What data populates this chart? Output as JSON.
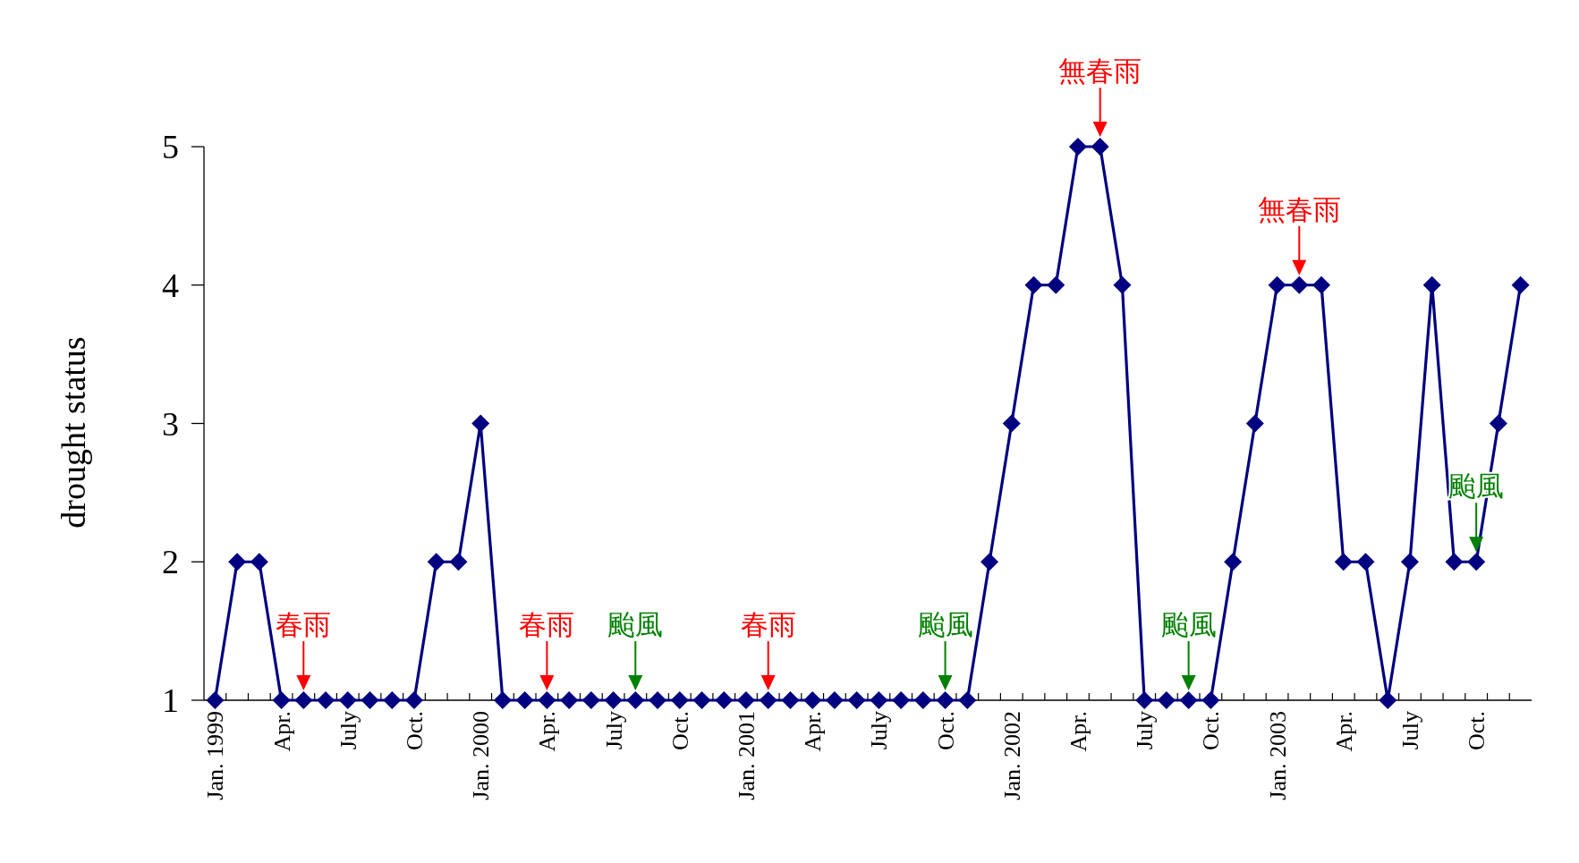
{
  "chart_data": {
    "type": "line",
    "ylabel": "drought status",
    "color": "#000080",
    "marker": "diamond",
    "line_style": "solid",
    "grid": false,
    "x": [
      "1999-01",
      "1999-02",
      "1999-03",
      "1999-04",
      "1999-05",
      "1999-06",
      "1999-07",
      "1999-08",
      "1999-09",
      "1999-10",
      "1999-11",
      "1999-12",
      "2000-01",
      "2000-02",
      "2000-03",
      "2000-04",
      "2000-05",
      "2000-06",
      "2000-07",
      "2000-08",
      "2000-09",
      "2000-10",
      "2000-11",
      "2000-12",
      "2001-01",
      "2001-02",
      "2001-03",
      "2001-04",
      "2001-05",
      "2001-06",
      "2001-07",
      "2001-08",
      "2001-09",
      "2001-10",
      "2001-11",
      "2001-12",
      "2002-01",
      "2002-02",
      "2002-03",
      "2002-04",
      "2002-05",
      "2002-06",
      "2002-07",
      "2002-08",
      "2002-09",
      "2002-10",
      "2002-11",
      "2002-12",
      "2003-01",
      "2003-02",
      "2003-03",
      "2003-04",
      "2003-05",
      "2003-06",
      "2003-07",
      "2003-08",
      "2003-09",
      "2003-10",
      "2003-11",
      "2003-12"
    ],
    "values": [
      1,
      2,
      2,
      1,
      1,
      1,
      1,
      1,
      1,
      1,
      2,
      2,
      3,
      1,
      1,
      1,
      1,
      1,
      1,
      1,
      1,
      1,
      1,
      1,
      1,
      1,
      1,
      1,
      1,
      1,
      1,
      1,
      1,
      1,
      1,
      2,
      3,
      4,
      4,
      5,
      5,
      4,
      1,
      1,
      1,
      1,
      2,
      3,
      4,
      4,
      4,
      2,
      2,
      1,
      2,
      4,
      2,
      2,
      3,
      4
    ],
    "ylim": [
      1,
      5
    ],
    "yticks": [
      1,
      2,
      3,
      4,
      5
    ],
    "xlim": [
      "1998-12-16",
      "2003-12-16"
    ],
    "xticks": [
      {
        "value": "1999-01",
        "label": "Jan. 1999"
      },
      {
        "value": "1999-04",
        "label": "Apr."
      },
      {
        "value": "1999-07",
        "label": "July"
      },
      {
        "value": "1999-10",
        "label": "Oct."
      },
      {
        "value": "2000-01",
        "label": "Jan. 2000"
      },
      {
        "value": "2000-04",
        "label": "Apr."
      },
      {
        "value": "2000-07",
        "label": "July"
      },
      {
        "value": "2000-10",
        "label": "Oct."
      },
      {
        "value": "2001-01",
        "label": "Jan. 2001"
      },
      {
        "value": "2001-04",
        "label": "Apr."
      },
      {
        "value": "2001-07",
        "label": "July"
      },
      {
        "value": "2001-10",
        "label": "Oct."
      },
      {
        "value": "2002-01",
        "label": "Jan. 2002"
      },
      {
        "value": "2002-04",
        "label": "Apr."
      },
      {
        "value": "2002-07",
        "label": "July"
      },
      {
        "value": "2002-10",
        "label": "Oct."
      },
      {
        "value": "2003-01",
        "label": "Jan. 2003"
      },
      {
        "value": "2003-04",
        "label": "Apr."
      },
      {
        "value": "2003-07",
        "label": "July"
      },
      {
        "value": "2003-10",
        "label": "Oct."
      },
      {
        "value": "1999-01-16",
        "label": null
      },
      {
        "value": "1999-02-16",
        "label": null
      },
      {
        "value": "1999-03-16",
        "label": null
      },
      {
        "value": "1999-04-16",
        "label": null
      },
      {
        "value": "1999-05-16",
        "label": null
      },
      {
        "value": "1999-06-16",
        "label": null
      },
      {
        "value": "1999-07-16",
        "label": null
      },
      {
        "value": "1999-08-16",
        "label": null
      },
      {
        "value": "1999-09-16",
        "label": null
      },
      {
        "value": "1999-10-16",
        "label": null
      },
      {
        "value": "1999-11-16",
        "label": null
      },
      {
        "value": "1999-12-16",
        "label": null
      },
      {
        "value": "2000-01-16",
        "label": null
      },
      {
        "value": "2000-02-16",
        "label": null
      },
      {
        "value": "2000-03-16",
        "label": null
      },
      {
        "value": "2000-04-16",
        "label": null
      },
      {
        "value": "2000-05-16",
        "label": null
      },
      {
        "value": "2000-06-16",
        "label": null
      },
      {
        "value": "2000-07-16",
        "label": null
      },
      {
        "value": "2000-08-16",
        "label": null
      },
      {
        "value": "2000-09-16",
        "label": null
      },
      {
        "value": "2000-10-16",
        "label": null
      },
      {
        "value": "2000-11-16",
        "label": null
      },
      {
        "value": "2000-12-16",
        "label": null
      },
      {
        "value": "2001-01-16",
        "label": null
      },
      {
        "value": "2001-02-16",
        "label": null
      },
      {
        "value": "2001-03-16",
        "label": null
      },
      {
        "value": "2001-04-16",
        "label": null
      },
      {
        "value": "2001-05-16",
        "label": null
      },
      {
        "value": "2001-06-16",
        "label": null
      },
      {
        "value": "2001-07-16",
        "label": null
      },
      {
        "value": "2001-08-16",
        "label": null
      },
      {
        "value": "2001-09-16",
        "label": null
      },
      {
        "value": "2001-10-16",
        "label": null
      },
      {
        "value": "2001-11-16",
        "label": null
      },
      {
        "value": "2001-12-16",
        "label": null
      },
      {
        "value": "2002-01-16",
        "label": null
      },
      {
        "value": "2002-02-16",
        "label": null
      },
      {
        "value": "2002-03-16",
        "label": null
      },
      {
        "value": "2002-04-16",
        "label": null
      },
      {
        "value": "2002-05-16",
        "label": null
      },
      {
        "value": "2002-06-16",
        "label": null
      },
      {
        "value": "2002-07-16",
        "label": null
      },
      {
        "value": "2002-08-16",
        "label": null
      },
      {
        "value": "2002-09-16",
        "label": null
      },
      {
        "value": "2002-10-16",
        "label": null
      },
      {
        "value": "2002-11-16",
        "label": null
      },
      {
        "value": "2002-12-16",
        "label": null
      },
      {
        "value": "2003-01-16",
        "label": null
      },
      {
        "value": "2003-02-16",
        "label": null
      },
      {
        "value": "2003-03-16",
        "label": null
      },
      {
        "value": "2003-04-16",
        "label": null
      },
      {
        "value": "2003-05-16",
        "label": null
      },
      {
        "value": "2003-06-16",
        "label": null
      },
      {
        "value": "2003-07-16",
        "label": null
      },
      {
        "value": "2003-08-16",
        "label": null
      },
      {
        "value": "2003-09-16",
        "label": null
      },
      {
        "value": "2003-10-16",
        "label": null
      },
      {
        "value": "2003-11-16",
        "label": null
      }
    ],
    "annotations": [
      {
        "text": "春雨",
        "x": "1999-05",
        "y": 1
      },
      {
        "text": "春雨",
        "x": "2000-04",
        "y": 1
      },
      {
        "text": "颱風",
        "x": "2000-08",
        "y": 1
      },
      {
        "text": "春雨",
        "x": "2001-02",
        "y": 1
      },
      {
        "text": "颱風",
        "x": "2001-10",
        "y": 1
      },
      {
        "text": "無春雨",
        "x": "2002-05",
        "y": 5
      },
      {
        "text": "颱風",
        "x": "2002-09",
        "y": 1
      },
      {
        "text": "無春雨",
        "x": "2003-02",
        "y": 4
      },
      {
        "text": "颱風",
        "x": "2003-10",
        "y": 2
      }
    ]
  }
}
